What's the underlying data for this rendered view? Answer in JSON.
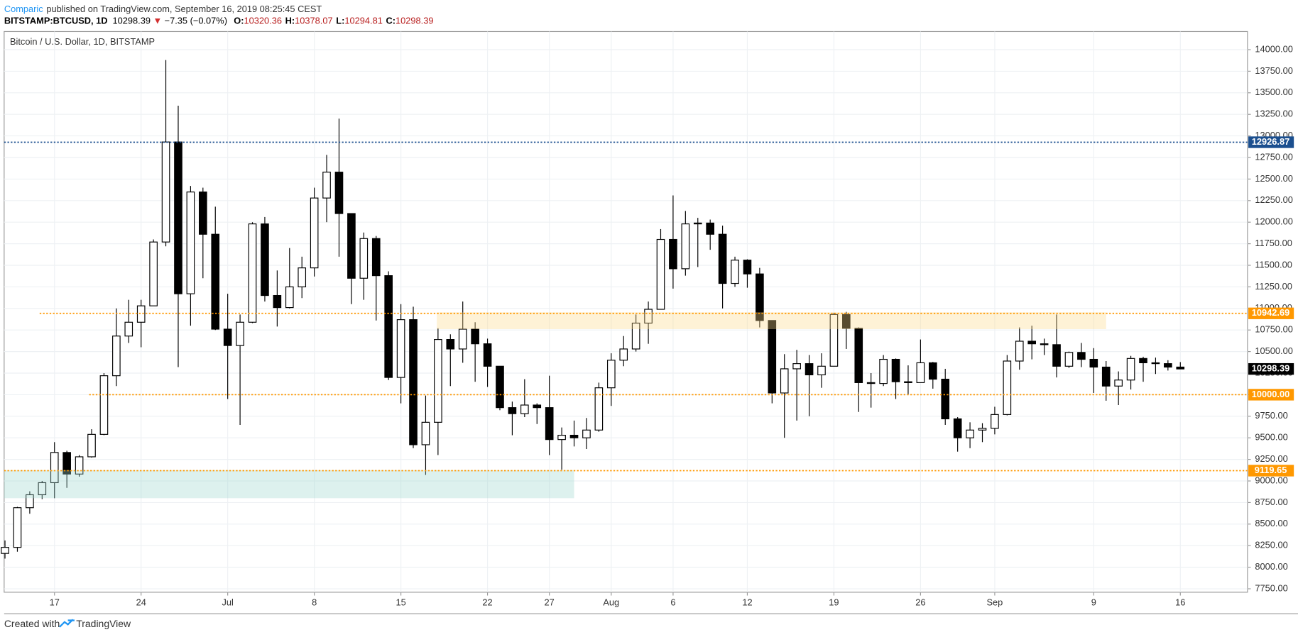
{
  "header": {
    "author": "Comparic",
    "published": "published on TradingView.com, September 16, 2019 08:25:45 CEST",
    "symbol": "BITSTAMP:BTCUSD, 1D",
    "last": "10298.39",
    "arrow": "▼",
    "change": "−7.35 (−0.07%)",
    "ohlc": [
      {
        "label": "O:",
        "value": "10320.36"
      },
      {
        "label": "H:",
        "value": "10378.07"
      },
      {
        "label": "L:",
        "value": "10294.81"
      },
      {
        "label": "C:",
        "value": "10298.39"
      }
    ]
  },
  "footer": {
    "text": "Created with",
    "brand": "TradingView"
  },
  "chart_data": {
    "type": "candlestick",
    "title": "Bitcoin / U.S. Dollar, 1D, BITSTAMP",
    "up_color": "#ffffff",
    "down_color": "#000000",
    "grid": true,
    "open": [
      8160,
      8230,
      8690,
      8840,
      8980,
      9330,
      9080,
      9280,
      9540,
      10220,
      10680,
      10840,
      11030,
      11770,
      12930,
      11170,
      12350,
      11860,
      10760,
      10570,
      10840,
      11980,
      11150,
      11010,
      11250,
      11470,
      12280,
      12580,
      12100,
      11350,
      11810,
      11380,
      10200,
      10870,
      9420,
      9680,
      10640,
      10530,
      10760,
      10590,
      10330,
      9850,
      9780,
      9880,
      9850,
      9480,
      9530,
      9500,
      9590,
      10080,
      10400,
      10530,
      10830,
      10990,
      11800,
      11460,
      11980,
      11990,
      11860,
      11290,
      11560,
      11400,
      10860,
      10020,
      10300,
      10360,
      10230,
      10330,
      10930,
      10770,
      10140,
      10130,
      10410,
      10150,
      10140,
      10370,
      10180,
      9720,
      9500,
      9590,
      9610,
      9770,
      10390,
      10620,
      10590,
      10580,
      10330,
      10490,
      10410,
      10320,
      10100,
      10170,
      10420,
      10370,
      10360,
      10320.36
    ],
    "high": [
      8310,
      8700,
      8880,
      9000,
      9450,
      9350,
      9300,
      9600,
      10250,
      11000,
      11100,
      11100,
      11800,
      13880,
      13350,
      12420,
      12400,
      12180,
      11170,
      10930,
      12000,
      12060,
      11440,
      11700,
      11600,
      12400,
      12780,
      13200,
      12100,
      11880,
      11840,
      11430,
      11050,
      11020,
      9990,
      10770,
      10700,
      11080,
      10840,
      10650,
      10330,
      9920,
      10180,
      9900,
      10220,
      9620,
      9700,
      9730,
      10140,
      10480,
      10680,
      10930,
      11080,
      11920,
      12310,
      12130,
      12050,
      12030,
      11960,
      11600,
      11570,
      11470,
      10860,
      10470,
      10520,
      10460,
      10480,
      10950,
      10960,
      10780,
      10250,
      10460,
      10420,
      10340,
      10640,
      10380,
      10300,
      9740,
      9680,
      9670,
      9860,
      10460,
      10780,
      10800,
      10650,
      10930,
      10500,
      10600,
      10540,
      10390,
      10270,
      10450,
      10440,
      10430,
      10400,
      10378.07
    ],
    "low": [
      8100,
      8180,
      8620,
      8790,
      8800,
      8920,
      9050,
      9270,
      9530,
      10100,
      10600,
      10550,
      11030,
      11720,
      10320,
      10800,
      11350,
      10750,
      9950,
      9650,
      10830,
      11080,
      10790,
      11000,
      11120,
      11370,
      12000,
      11600,
      11050,
      11100,
      10860,
      10170,
      9900,
      9380,
      9070,
      9300,
      10100,
      10370,
      10150,
      10090,
      9820,
      9530,
      9740,
      9660,
      9300,
      9130,
      9400,
      9370,
      9570,
      9870,
      10330,
      10500,
      10590,
      10990,
      11230,
      11380,
      11480,
      11680,
      11000,
      11250,
      11240,
      10780,
      9900,
      9500,
      9700,
      9750,
      10080,
      10330,
      10530,
      9800,
      9850,
      10100,
      9950,
      10000,
      10140,
      10070,
      9650,
      9340,
      9380,
      9450,
      9540,
      9760,
      10290,
      10410,
      10460,
      10200,
      10310,
      10320,
      10020,
      9930,
      9880,
      10060,
      10150,
      10240,
      10280,
      10294.81
    ],
    "close": [
      8230,
      8690,
      8840,
      8980,
      9330,
      9080,
      9280,
      9540,
      10220,
      10680,
      10840,
      11030,
      11770,
      12930,
      11170,
      12350,
      11860,
      10760,
      10570,
      10840,
      11980,
      11150,
      11010,
      11250,
      11470,
      12280,
      12580,
      12100,
      11350,
      11810,
      11380,
      10200,
      10870,
      9420,
      9680,
      10640,
      10530,
      10760,
      10590,
      10330,
      9850,
      9780,
      9880,
      9850,
      9480,
      9530,
      9500,
      9590,
      10080,
      10400,
      10530,
      10830,
      10990,
      11800,
      11460,
      11980,
      11990,
      11860,
      11290,
      11560,
      11400,
      10860,
      10020,
      10300,
      10360,
      10230,
      10330,
      10930,
      10770,
      10140,
      10130,
      10410,
      10150,
      10140,
      10370,
      10180,
      9720,
      9500,
      9590,
      9610,
      9770,
      10390,
      10620,
      10590,
      10580,
      10330,
      10490,
      10410,
      10320,
      10100,
      10170,
      10420,
      10370,
      10360,
      10320,
      10298.39
    ],
    "xlim": [
      -0.07,
      100.43
    ],
    "xticks": [
      {
        "value": 4,
        "label": "17"
      },
      {
        "value": 11,
        "label": "24"
      },
      {
        "value": 18,
        "label": "Jul"
      },
      {
        "value": 25,
        "label": "8"
      },
      {
        "value": 32,
        "label": "15"
      },
      {
        "value": 39,
        "label": "22"
      },
      {
        "value": 44,
        "label": "27"
      },
      {
        "value": 49,
        "label": "Aug"
      },
      {
        "value": 54,
        "label": "6"
      },
      {
        "value": 60,
        "label": "12"
      },
      {
        "value": 67,
        "label": "19"
      },
      {
        "value": 74,
        "label": "26"
      },
      {
        "value": 80,
        "label": "Sep"
      },
      {
        "value": 88,
        "label": "9"
      },
      {
        "value": 95,
        "label": "16"
      }
    ],
    "ylim": [
      7710,
      14210
    ],
    "yticks": [
      {
        "value": 7750,
        "label": "7750.00"
      },
      {
        "value": 8000,
        "label": "8000.00"
      },
      {
        "value": 8250,
        "label": "8250.00"
      },
      {
        "value": 8500,
        "label": "8500.00"
      },
      {
        "value": 8750,
        "label": "8750.00"
      },
      {
        "value": 9000,
        "label": "9000.00"
      },
      {
        "value": 9250,
        "label": "9250.00"
      },
      {
        "value": 9500,
        "label": "9500.00"
      },
      {
        "value": 9750,
        "label": "9750.00"
      },
      {
        "value": 10000,
        "label": "10000.00"
      },
      {
        "value": 10250,
        "label": "10250.00"
      },
      {
        "value": 10500,
        "label": "10500.00"
      },
      {
        "value": 10750,
        "label": "10750.00"
      },
      {
        "value": 11000,
        "label": "11000.00"
      },
      {
        "value": 11250,
        "label": "11250.00"
      },
      {
        "value": 11500,
        "label": "11500.00"
      },
      {
        "value": 11750,
        "label": "11750.00"
      },
      {
        "value": 12000,
        "label": "12000.00"
      },
      {
        "value": 12250,
        "label": "12250.00"
      },
      {
        "value": 12500,
        "label": "12500.00"
      },
      {
        "value": 12750,
        "label": "12750.00"
      },
      {
        "value": 13000,
        "label": "13000.00"
      },
      {
        "value": 13250,
        "label": "13250.00"
      },
      {
        "value": 13500,
        "label": "13500.00"
      },
      {
        "value": 13750,
        "label": "13750.00"
      },
      {
        "value": 14000,
        "label": "14000.00"
      }
    ],
    "levels": [
      {
        "value": 12926.87,
        "color": "#1b4f8f",
        "x0": -0.07
      },
      {
        "value": 10942.69,
        "color": "#ff9800",
        "x0": 2.8
      },
      {
        "value": 10000,
        "label": "10000.00",
        "color": "#ff9800",
        "x0": 6.8
      },
      {
        "value": 9119.65,
        "color": "#ff9800",
        "x0": -0.07
      }
    ],
    "zones": [
      {
        "ylim": [
          10760,
          10955
        ],
        "xlim": [
          34.9,
          89
        ],
        "color": "#fbd98a"
      },
      {
        "ylim": [
          8800,
          9125
        ],
        "xlim": [
          -0.07,
          46
        ],
        "color": "#9fd8cf"
      }
    ]
  }
}
